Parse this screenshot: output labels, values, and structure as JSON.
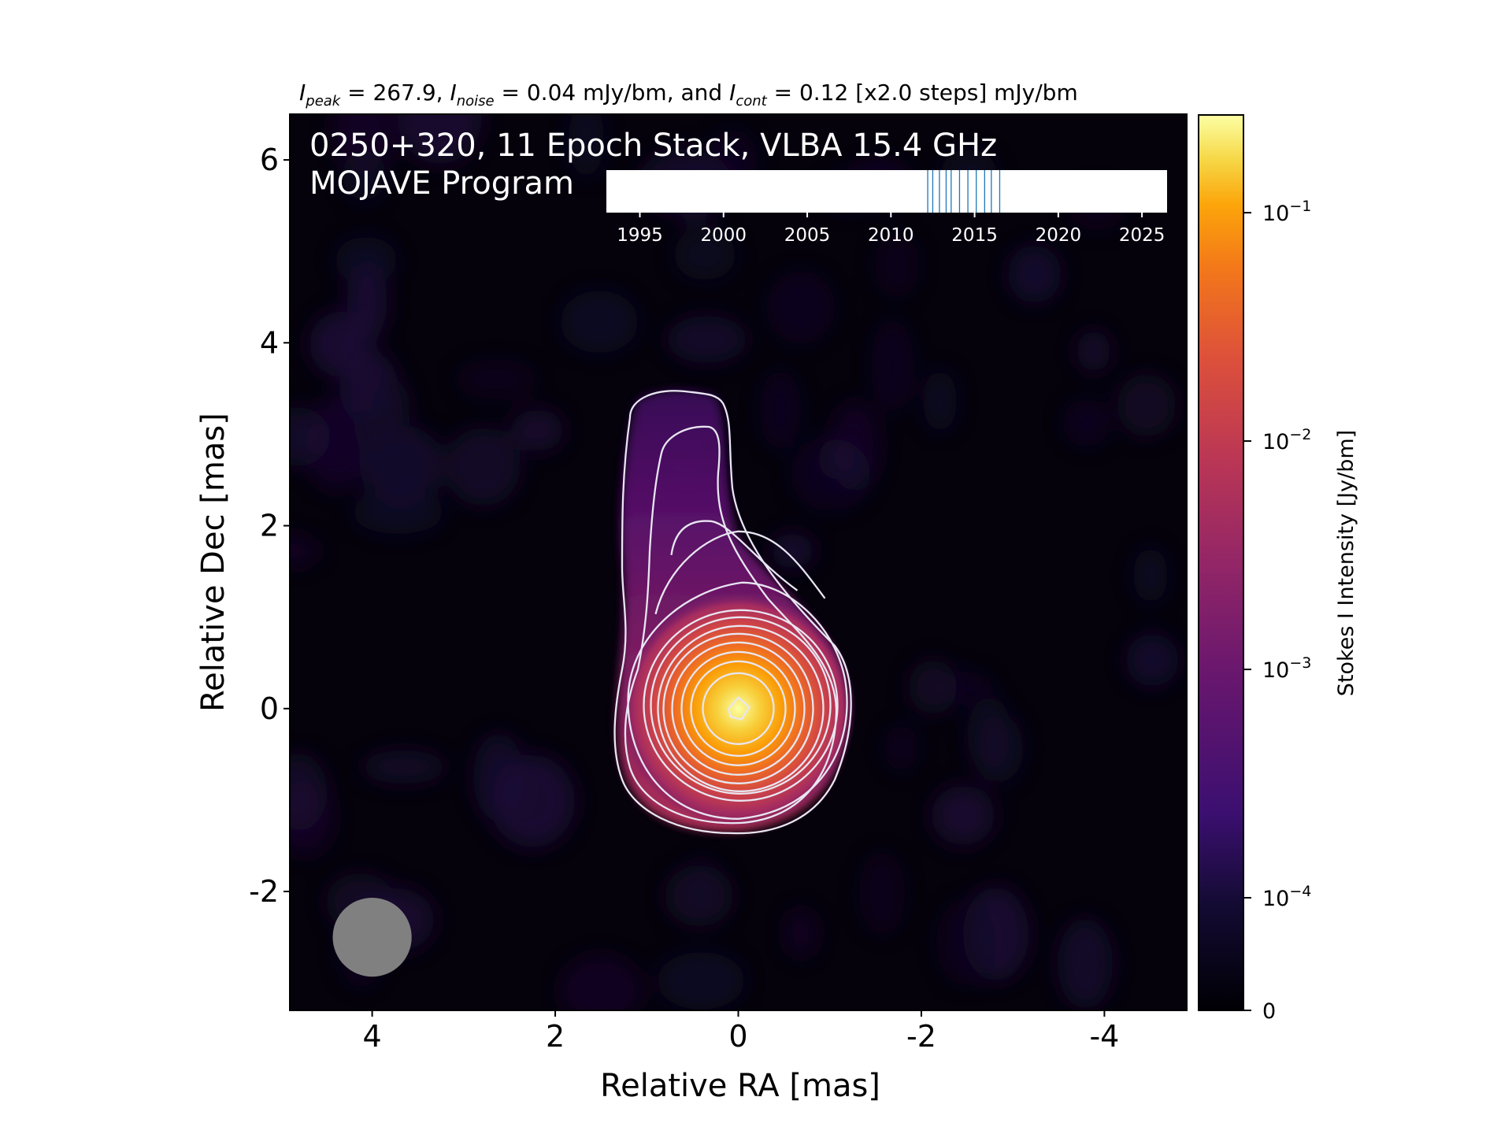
{
  "chart_data": {
    "type": "heatmap",
    "title_parts": {
      "peak_sym": "I",
      "peak_sub": "peak",
      "peak_val": " = 267.9, ",
      "noise_sym": "I",
      "noise_sub": "noise",
      "noise_val": " = 0.04 mJy/bm, and ",
      "cont_sym": "I",
      "cont_sub": "cont",
      "cont_val": " = 0.12 [x2.0 steps] mJy/bm"
    },
    "annotation": {
      "line1": "0250+320, 11 Epoch Stack, VLBA 15.4 GHz",
      "line2": "MOJAVE Program"
    },
    "xlabel": "Relative RA [mas]",
    "ylabel": "Relative Dec [mas]",
    "xlim": [
      4.9,
      -4.9
    ],
    "ylim": [
      -3.3,
      6.5
    ],
    "xticks": [
      4,
      2,
      0,
      -2,
      -4
    ],
    "xtick_labels": [
      "4",
      "2",
      "0",
      "-2",
      "-4"
    ],
    "yticks": [
      6,
      4,
      2,
      0,
      -2
    ],
    "ytick_labels": [
      "6",
      "4",
      "2",
      "0",
      "-2"
    ],
    "colorbar": {
      "label": "Stokes I Intensity [Jy/bm]",
      "scale": "symlog",
      "ticks": [
        {
          "value": 0.1,
          "base": "10",
          "exp": "−1"
        },
        {
          "value": 0.01,
          "base": "10",
          "exp": "−2"
        },
        {
          "value": 0.001,
          "base": "10",
          "exp": "−3"
        },
        {
          "value": 0.0001,
          "base": "10",
          "exp": "−4"
        },
        {
          "value": 0,
          "label": "0"
        }
      ],
      "colormap": "inferno",
      "max": 0.2679
    },
    "source": {
      "peak_ra": 0,
      "peak_dec": 0,
      "jet_direction": "north",
      "contour_base_mJy": 0.12,
      "contour_step": 2.0
    },
    "beam": {
      "ra": 4.0,
      "dec": -2.5,
      "major_mas": 0.75,
      "minor_mas": 0.75
    },
    "epoch_timeline": {
      "xlim": [
        1993,
        2026.5
      ],
      "ticks": [
        1995,
        2000,
        2005,
        2010,
        2015,
        2020,
        2025
      ],
      "tick_labels": [
        "1995",
        "2000",
        "2005",
        "2010",
        "2015",
        "2020",
        "2025"
      ],
      "epochs": [
        2012.2,
        2012.5,
        2012.9,
        2013.3,
        2013.6,
        2014.1,
        2014.6,
        2015.1,
        2015.6,
        2016.0,
        2016.5
      ]
    },
    "colors": {
      "contour": "#e8e6f2",
      "beam": "#808080",
      "epoch_line": "#1f77b4"
    }
  }
}
